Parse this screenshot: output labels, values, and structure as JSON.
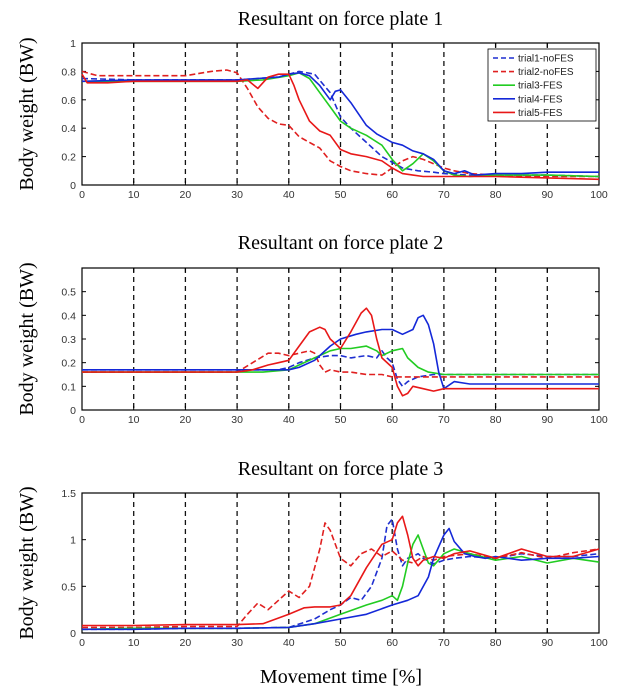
{
  "figure": {
    "xlabel": "Movement time [%]"
  },
  "chart_data": [
    {
      "type": "line",
      "title": "Resultant on force plate 1",
      "xlabel": "",
      "ylabel": "Body weight (BW)",
      "xlim": [
        0,
        100
      ],
      "ylim": [
        0,
        1
      ],
      "xticks": [
        0,
        10,
        20,
        30,
        40,
        50,
        60,
        70,
        80,
        90,
        100
      ],
      "yticks": [
        0,
        0.2,
        0.4,
        0.6,
        0.8,
        1
      ],
      "ytick_labels": [
        "0",
        "0.2",
        "0.4",
        "0.6",
        "0.8",
        "1"
      ],
      "vlines": [
        10,
        20,
        30,
        40,
        50,
        60,
        70,
        80,
        90
      ],
      "grid": false,
      "legend": "top-right",
      "series": [
        {
          "name": "trial1-noFES",
          "color": "#1f2fd0",
          "dash": true,
          "x": [
            0,
            10,
            20,
            30,
            38,
            42,
            45,
            48,
            50,
            52,
            55,
            58,
            60,
            62,
            65,
            68,
            70,
            75,
            80,
            90,
            100
          ],
          "y": [
            0.75,
            0.74,
            0.74,
            0.74,
            0.76,
            0.8,
            0.78,
            0.65,
            0.48,
            0.4,
            0.3,
            0.2,
            0.16,
            0.12,
            0.1,
            0.09,
            0.08,
            0.07,
            0.07,
            0.07,
            0.06
          ]
        },
        {
          "name": "trial2-noFES",
          "color": "#e02020",
          "dash": true,
          "x": [
            0,
            3,
            10,
            20,
            25,
            28,
            30,
            32,
            34,
            36,
            38,
            40,
            42,
            44,
            46,
            48,
            50,
            52,
            55,
            58,
            60,
            62,
            64,
            66,
            68,
            70,
            72,
            75,
            80,
            90,
            100
          ],
          "y": [
            0.8,
            0.77,
            0.77,
            0.77,
            0.8,
            0.81,
            0.79,
            0.68,
            0.55,
            0.47,
            0.43,
            0.42,
            0.34,
            0.3,
            0.26,
            0.17,
            0.13,
            0.1,
            0.08,
            0.07,
            0.12,
            0.17,
            0.2,
            0.18,
            0.15,
            0.12,
            0.1,
            0.08,
            0.07,
            0.06,
            0.06
          ]
        },
        {
          "name": "trial3-FES",
          "color": "#22cc22",
          "dash": false,
          "x": [
            0,
            10,
            20,
            30,
            35,
            40,
            42,
            44,
            46,
            48,
            50,
            52,
            55,
            58,
            60,
            62,
            64,
            66,
            68,
            70,
            72,
            75,
            80,
            90,
            100
          ],
          "y": [
            0.73,
            0.73,
            0.73,
            0.73,
            0.74,
            0.77,
            0.79,
            0.75,
            0.65,
            0.55,
            0.45,
            0.4,
            0.35,
            0.28,
            0.18,
            0.1,
            0.15,
            0.22,
            0.17,
            0.1,
            0.07,
            0.06,
            0.07,
            0.07,
            0.06
          ]
        },
        {
          "name": "trial4-FES",
          "color": "#1428d8",
          "dash": false,
          "x": [
            0,
            10,
            20,
            30,
            38,
            40,
            42,
            44,
            46,
            48,
            49,
            50,
            52,
            55,
            57,
            60,
            62,
            64,
            66,
            68,
            70,
            72,
            74,
            76,
            80,
            85,
            90,
            100
          ],
          "y": [
            0.73,
            0.74,
            0.74,
            0.74,
            0.76,
            0.78,
            0.79,
            0.77,
            0.7,
            0.6,
            0.66,
            0.67,
            0.58,
            0.42,
            0.36,
            0.3,
            0.28,
            0.24,
            0.22,
            0.18,
            0.1,
            0.08,
            0.1,
            0.07,
            0.08,
            0.08,
            0.09,
            0.09
          ]
        },
        {
          "name": "trial5-FES",
          "color": "#e81818",
          "dash": false,
          "x": [
            0,
            1,
            5,
            10,
            20,
            30,
            32,
            34,
            36,
            38,
            40,
            41,
            42,
            44,
            46,
            48,
            50,
            52,
            55,
            58,
            60,
            62,
            64,
            66,
            68,
            70,
            72,
            75,
            80,
            90,
            100
          ],
          "y": [
            0.78,
            0.72,
            0.72,
            0.73,
            0.73,
            0.73,
            0.74,
            0.68,
            0.76,
            0.78,
            0.78,
            0.7,
            0.6,
            0.45,
            0.38,
            0.35,
            0.25,
            0.22,
            0.2,
            0.17,
            0.12,
            0.08,
            0.07,
            0.06,
            0.06,
            0.06,
            0.06,
            0.06,
            0.06,
            0.05,
            0.04
          ]
        }
      ]
    },
    {
      "type": "line",
      "title": "Resultant on force plate 2",
      "xlabel": "",
      "ylabel": "Body weight (BW)",
      "xlim": [
        0,
        100
      ],
      "ylim": [
        0,
        0.6
      ],
      "xticks": [
        0,
        10,
        20,
        30,
        40,
        50,
        60,
        70,
        80,
        90,
        100
      ],
      "yticks": [
        0,
        0.1,
        0.2,
        0.3,
        0.4,
        0.5
      ],
      "ytick_labels": [
        "0",
        "0.1",
        "0.2",
        "0.3",
        "0.4",
        "0.5"
      ],
      "vlines": [
        10,
        20,
        30,
        40,
        50,
        60,
        70,
        80,
        90
      ],
      "grid": false,
      "legend": "",
      "series": [
        {
          "name": "trial1-noFES",
          "color": "#1f2fd0",
          "dash": true,
          "x": [
            0,
            10,
            20,
            30,
            38,
            40,
            42,
            45,
            48,
            50,
            52,
            55,
            57,
            58,
            59,
            60,
            61,
            62,
            63,
            65,
            68,
            70,
            75,
            80,
            90,
            100
          ],
          "y": [
            0.17,
            0.17,
            0.17,
            0.17,
            0.17,
            0.18,
            0.2,
            0.22,
            0.23,
            0.23,
            0.22,
            0.23,
            0.22,
            0.25,
            0.22,
            0.2,
            0.13,
            0.1,
            0.12,
            0.14,
            0.15,
            0.15,
            0.15,
            0.15,
            0.15,
            0.15
          ]
        },
        {
          "name": "trial2-noFES",
          "color": "#e02020",
          "dash": true,
          "x": [
            0,
            10,
            20,
            30,
            33,
            36,
            38,
            40,
            42,
            44,
            45,
            46,
            47,
            48,
            50,
            52,
            55,
            58,
            60,
            65,
            70,
            80,
            90,
            100
          ],
          "y": [
            0.16,
            0.16,
            0.16,
            0.16,
            0.2,
            0.24,
            0.24,
            0.23,
            0.24,
            0.25,
            0.24,
            0.19,
            0.16,
            0.17,
            0.16,
            0.16,
            0.15,
            0.15,
            0.14,
            0.14,
            0.14,
            0.14,
            0.14,
            0.14
          ]
        },
        {
          "name": "trial3-FES",
          "color": "#22cc22",
          "dash": false,
          "x": [
            0,
            10,
            20,
            30,
            35,
            40,
            42,
            45,
            48,
            50,
            52,
            55,
            57,
            58,
            60,
            62,
            63,
            65,
            67,
            70,
            75,
            80,
            90,
            100
          ],
          "y": [
            0.16,
            0.16,
            0.16,
            0.16,
            0.16,
            0.17,
            0.19,
            0.22,
            0.25,
            0.26,
            0.26,
            0.27,
            0.25,
            0.23,
            0.25,
            0.26,
            0.22,
            0.18,
            0.16,
            0.15,
            0.15,
            0.15,
            0.15,
            0.15
          ]
        },
        {
          "name": "trial4-FES",
          "color": "#1428d8",
          "dash": false,
          "x": [
            0,
            10,
            20,
            30,
            38,
            40,
            42,
            45,
            48,
            50,
            53,
            55,
            58,
            60,
            62,
            64,
            65,
            66,
            67,
            68,
            69,
            70,
            72,
            75,
            80,
            90,
            100
          ],
          "y": [
            0.17,
            0.17,
            0.17,
            0.17,
            0.17,
            0.17,
            0.18,
            0.21,
            0.27,
            0.3,
            0.32,
            0.33,
            0.34,
            0.34,
            0.32,
            0.34,
            0.39,
            0.4,
            0.36,
            0.28,
            0.16,
            0.09,
            0.12,
            0.11,
            0.11,
            0.11,
            0.11
          ]
        },
        {
          "name": "trial5-FES",
          "color": "#e81818",
          "dash": false,
          "x": [
            0,
            10,
            20,
            30,
            33,
            36,
            38,
            40,
            42,
            44,
            46,
            47,
            48,
            50,
            52,
            54,
            55,
            56,
            57,
            58,
            60,
            61,
            62,
            63,
            64,
            66,
            68,
            70,
            75,
            80,
            90,
            100
          ],
          "y": [
            0.16,
            0.16,
            0.16,
            0.16,
            0.17,
            0.19,
            0.2,
            0.21,
            0.27,
            0.33,
            0.35,
            0.34,
            0.3,
            0.26,
            0.33,
            0.41,
            0.43,
            0.4,
            0.3,
            0.22,
            0.18,
            0.1,
            0.06,
            0.07,
            0.1,
            0.09,
            0.08,
            0.09,
            0.09,
            0.09,
            0.09,
            0.09
          ]
        }
      ]
    },
    {
      "type": "line",
      "title": "Resultant on force plate 3",
      "xlabel": "Movement time [%]",
      "ylabel": "Body weight (BW)",
      "xlim": [
        0,
        100
      ],
      "ylim": [
        0,
        1.5
      ],
      "xticks": [
        0,
        10,
        20,
        30,
        40,
        50,
        60,
        70,
        80,
        90,
        100
      ],
      "yticks": [
        0,
        0.5,
        1,
        1.5
      ],
      "ytick_labels": [
        "0",
        "0.5",
        "1",
        "1.5"
      ],
      "vlines": [
        10,
        20,
        30,
        40,
        50,
        60,
        70,
        80,
        90
      ],
      "grid": false,
      "legend": "",
      "series": [
        {
          "name": "trial1-noFES",
          "color": "#1f2fd0",
          "dash": true,
          "x": [
            0,
            10,
            20,
            30,
            40,
            45,
            48,
            50,
            52,
            54,
            56,
            58,
            59,
            60,
            61,
            62,
            63,
            64,
            65,
            66,
            68,
            70,
            72,
            75,
            80,
            85,
            90,
            95,
            100
          ],
          "y": [
            0.04,
            0.04,
            0.05,
            0.05,
            0.06,
            0.15,
            0.25,
            0.3,
            0.38,
            0.35,
            0.5,
            0.8,
            1.15,
            1.22,
            0.9,
            0.72,
            0.8,
            0.82,
            0.85,
            0.8,
            0.74,
            0.78,
            0.8,
            0.82,
            0.8,
            0.85,
            0.82,
            0.82,
            0.85
          ]
        },
        {
          "name": "trial2-noFES",
          "color": "#e02020",
          "dash": true,
          "x": [
            0,
            10,
            20,
            30,
            32,
            34,
            36,
            38,
            40,
            42,
            44,
            46,
            47,
            48,
            50,
            52,
            54,
            56,
            58,
            60,
            62,
            64,
            66,
            68,
            70,
            75,
            80,
            85,
            90,
            95,
            100
          ],
          "y": [
            0.06,
            0.06,
            0.07,
            0.07,
            0.2,
            0.32,
            0.25,
            0.35,
            0.45,
            0.38,
            0.5,
            0.9,
            1.18,
            1.1,
            0.8,
            0.72,
            0.85,
            0.9,
            0.82,
            0.88,
            0.78,
            0.75,
            0.82,
            0.78,
            0.82,
            0.85,
            0.8,
            0.86,
            0.8,
            0.86,
            0.9
          ]
        },
        {
          "name": "trial3-FES",
          "color": "#22cc22",
          "dash": false,
          "x": [
            0,
            10,
            20,
            30,
            40,
            45,
            50,
            55,
            58,
            60,
            61,
            62,
            63,
            64,
            65,
            66,
            67,
            68,
            70,
            72,
            75,
            80,
            85,
            90,
            95,
            100
          ],
          "y": [
            0.04,
            0.05,
            0.05,
            0.05,
            0.06,
            0.1,
            0.2,
            0.3,
            0.35,
            0.4,
            0.35,
            0.5,
            0.75,
            0.95,
            1.05,
            0.9,
            0.75,
            0.72,
            0.85,
            0.9,
            0.85,
            0.78,
            0.82,
            0.75,
            0.8,
            0.76
          ]
        },
        {
          "name": "trial4-FES",
          "color": "#1428d8",
          "dash": false,
          "x": [
            0,
            10,
            20,
            30,
            40,
            45,
            50,
            55,
            60,
            63,
            65,
            67,
            68,
            70,
            71,
            72,
            74,
            76,
            78,
            80,
            85,
            90,
            95,
            100
          ],
          "y": [
            0.04,
            0.04,
            0.05,
            0.05,
            0.06,
            0.1,
            0.15,
            0.2,
            0.3,
            0.35,
            0.4,
            0.6,
            0.8,
            1.05,
            1.12,
            0.98,
            0.85,
            0.82,
            0.8,
            0.82,
            0.78,
            0.8,
            0.8,
            0.82
          ]
        },
        {
          "name": "trial5-FES",
          "color": "#e81818",
          "dash": false,
          "x": [
            0,
            10,
            20,
            30,
            35,
            40,
            43,
            45,
            48,
            50,
            52,
            55,
            58,
            60,
            61,
            62,
            63,
            64,
            65,
            66,
            68,
            70,
            72,
            75,
            80,
            85,
            90,
            95,
            100
          ],
          "y": [
            0.08,
            0.08,
            0.09,
            0.09,
            0.1,
            0.2,
            0.27,
            0.28,
            0.28,
            0.3,
            0.4,
            0.7,
            0.95,
            1.0,
            1.18,
            1.25,
            1.05,
            0.8,
            0.72,
            0.78,
            0.82,
            0.8,
            0.85,
            0.88,
            0.8,
            0.9,
            0.82,
            0.82,
            0.9
          ]
        }
      ]
    }
  ]
}
